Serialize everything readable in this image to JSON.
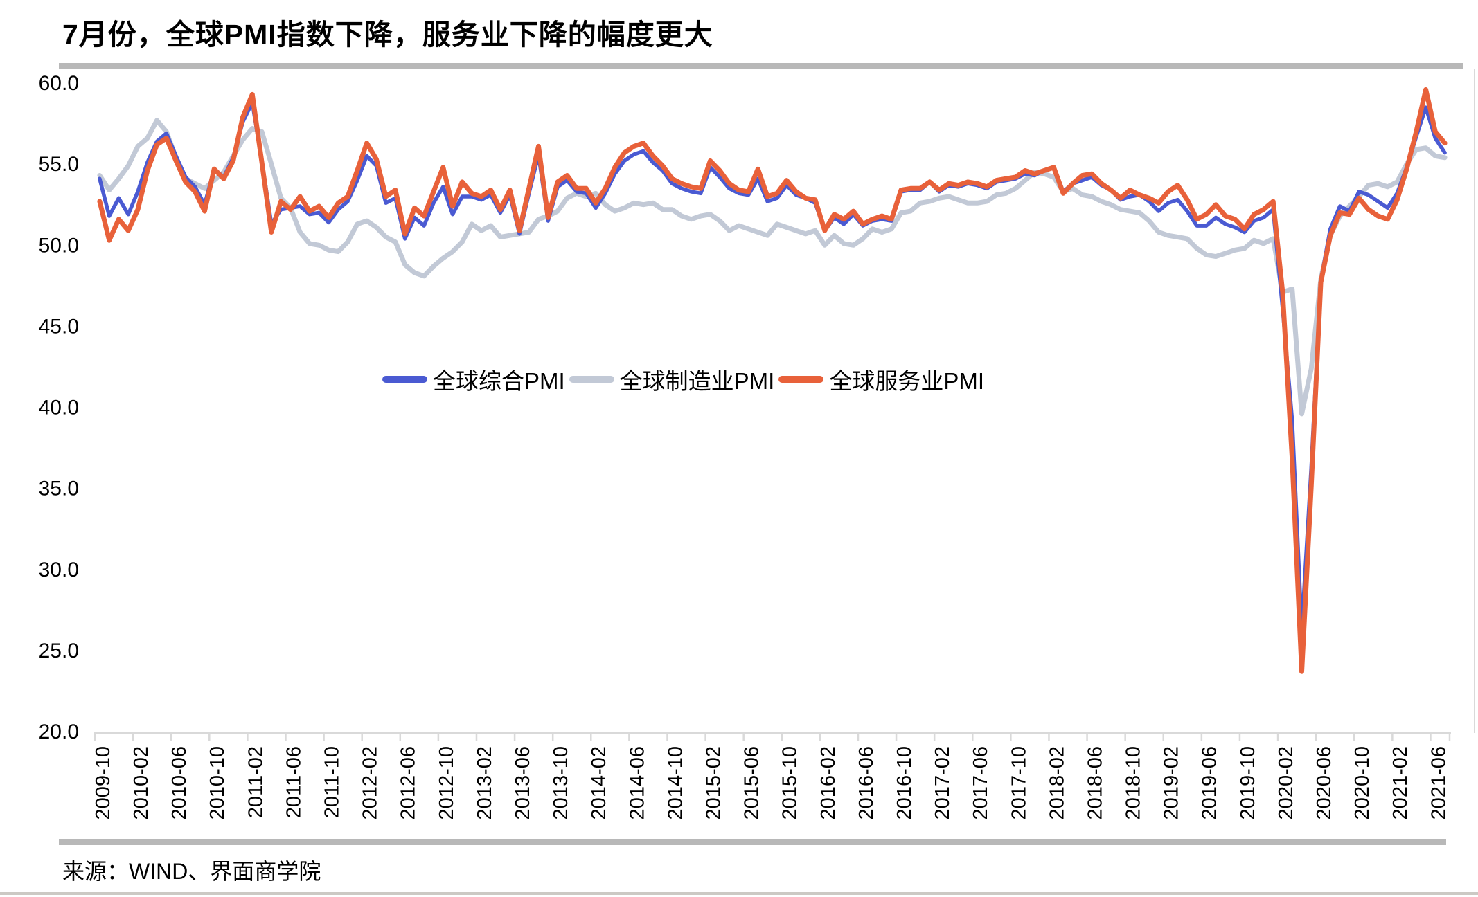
{
  "header": {
    "title": "7月份，全球PMI指数下降，服务业下降的幅度更大"
  },
  "footer": {
    "source": "来源：WIND、界面商学院"
  },
  "colors": {
    "composite_blue": "#4a5ad2",
    "manufacturing_gray": "#c2c9d6",
    "services_orange": "#e8613a",
    "rule_gray": "#b8b8b8",
    "axis_gray": "#d9d9d9",
    "text_black": "#000000"
  },
  "chart_data": {
    "type": "line",
    "title": "7月份，全球PMI指数下降，服务业下降的幅度更大",
    "xlabel": "",
    "ylabel": "",
    "ylim": [
      20.0,
      60.0
    ],
    "y_tick_labels": [
      "60.0",
      "55.0",
      "50.0",
      "45.0",
      "40.0",
      "35.0",
      "30.0",
      "25.0",
      "20.0"
    ],
    "grid": "off",
    "legend_position": "center-inside",
    "x_start": "2009-10",
    "x_end": "2021-07",
    "x_tick_interval_months": 4,
    "x_tick_labels": [
      "2009-10",
      "2010-02",
      "2010-06",
      "2010-10",
      "2011-02",
      "2011-06",
      "2011-10",
      "2012-02",
      "2012-06",
      "2012-10",
      "2013-02",
      "2013-06",
      "2013-10",
      "2014-02",
      "2014-06",
      "2014-10",
      "2015-02",
      "2015-06",
      "2015-10",
      "2016-02",
      "2016-06",
      "2016-10",
      "2017-02",
      "2017-06",
      "2017-10",
      "2018-02",
      "2018-06",
      "2018-10",
      "2019-02",
      "2019-06",
      "2019-10",
      "2020-02",
      "2020-06",
      "2020-10",
      "2021-02",
      "2021-06"
    ],
    "series": [
      {
        "name": "全球综合PMI",
        "color": "#4a5ad2",
        "values": [
          54.1,
          51.8,
          52.9,
          51.9,
          53.3,
          55.1,
          56.4,
          56.9,
          55.5,
          54.2,
          53.6,
          52.5,
          54.7,
          54.2,
          55.4,
          57.6,
          58.8,
          55.2,
          51.3,
          52.2,
          52.3,
          52.4,
          51.9,
          52.0,
          51.4,
          52.2,
          52.7,
          54.0,
          55.5,
          54.9,
          52.6,
          52.9,
          50.4,
          51.7,
          51.2,
          52.6,
          53.6,
          51.9,
          53.0,
          53.0,
          52.8,
          53.1,
          52.0,
          53.1,
          50.7,
          53.2,
          55.6,
          51.5,
          53.6,
          54.0,
          53.3,
          53.2,
          52.3,
          53.2,
          54.4,
          55.2,
          55.6,
          55.8,
          55.1,
          54.6,
          53.8,
          53.5,
          53.3,
          53.2,
          54.8,
          54.2,
          53.5,
          53.2,
          53.1,
          54.1,
          52.7,
          52.9,
          53.7,
          53.1,
          52.9,
          52.6,
          50.9,
          51.7,
          51.3,
          51.9,
          51.2,
          51.5,
          51.6,
          51.5,
          53.3,
          53.4,
          53.4,
          53.9,
          53.3,
          53.7,
          53.6,
          53.8,
          53.7,
          53.5,
          53.9,
          54.0,
          54.1,
          54.4,
          54.3,
          54.6,
          54.8,
          53.3,
          53.8,
          54.0,
          54.2,
          53.7,
          53.4,
          52.8,
          53.0,
          53.1,
          52.7,
          52.1,
          52.6,
          52.8,
          52.1,
          51.2,
          51.2,
          51.7,
          51.3,
          51.1,
          50.8,
          51.5,
          51.7,
          52.2,
          46.1,
          39.2,
          26.2,
          36.3,
          47.8,
          51.0,
          52.4,
          52.1,
          53.3,
          53.1,
          52.7,
          52.3,
          53.2,
          54.8,
          56.7,
          58.5,
          56.6,
          55.7
        ]
      },
      {
        "name": "全球制造业PMI",
        "color": "#c2c9d6",
        "values": [
          54.3,
          53.4,
          54.1,
          54.9,
          56.1,
          56.6,
          57.7,
          57.0,
          55.4,
          54.1,
          53.8,
          53.5,
          54.0,
          54.5,
          55.5,
          56.5,
          57.2,
          57.0,
          55.0,
          52.9,
          52.3,
          50.8,
          50.1,
          50.0,
          49.7,
          49.6,
          50.2,
          51.3,
          51.5,
          51.1,
          50.5,
          50.2,
          48.8,
          48.3,
          48.1,
          48.7,
          49.2,
          49.6,
          50.2,
          51.3,
          50.9,
          51.2,
          50.5,
          50.6,
          50.7,
          50.8,
          51.6,
          51.8,
          52.1,
          52.9,
          53.2,
          53.0,
          53.2,
          52.5,
          52.1,
          52.3,
          52.6,
          52.5,
          52.6,
          52.2,
          52.2,
          51.8,
          51.6,
          51.8,
          51.9,
          51.5,
          50.9,
          51.2,
          51.0,
          50.8,
          50.6,
          51.3,
          51.1,
          50.9,
          50.7,
          50.9,
          50.0,
          50.6,
          50.1,
          50.0,
          50.4,
          51.0,
          50.8,
          51.0,
          52.0,
          52.1,
          52.6,
          52.7,
          52.9,
          53.0,
          52.8,
          52.6,
          52.6,
          52.7,
          53.1,
          53.2,
          53.5,
          54.0,
          54.5,
          54.4,
          54.2,
          53.3,
          53.5,
          53.1,
          53.0,
          52.7,
          52.5,
          52.2,
          52.1,
          52.0,
          51.5,
          50.8,
          50.6,
          50.5,
          50.4,
          49.8,
          49.4,
          49.3,
          49.5,
          49.7,
          49.8,
          50.3,
          50.1,
          50.4,
          47.1,
          47.3,
          39.6,
          42.4,
          47.9,
          50.6,
          51.8,
          52.4,
          53.0,
          53.7,
          53.8,
          53.6,
          53.9,
          55.0,
          55.9,
          56.0,
          55.5,
          55.4
        ]
      },
      {
        "name": "全球服务业PMI",
        "color": "#e8613a",
        "values": [
          52.7,
          50.3,
          51.6,
          50.9,
          52.2,
          54.6,
          56.2,
          56.6,
          55.2,
          53.9,
          53.3,
          52.1,
          54.7,
          54.1,
          55.2,
          57.9,
          59.3,
          55.1,
          50.8,
          52.7,
          52.2,
          53.0,
          52.1,
          52.4,
          51.7,
          52.6,
          53.0,
          54.6,
          56.3,
          55.3,
          53.0,
          53.4,
          50.7,
          52.3,
          51.8,
          53.3,
          54.8,
          52.4,
          53.9,
          53.2,
          53.0,
          53.4,
          52.2,
          53.4,
          50.9,
          53.5,
          56.1,
          51.7,
          53.9,
          54.3,
          53.5,
          53.5,
          52.6,
          53.5,
          54.8,
          55.7,
          56.1,
          56.3,
          55.5,
          54.9,
          54.1,
          53.8,
          53.6,
          53.5,
          55.2,
          54.6,
          53.8,
          53.4,
          53.3,
          54.7,
          53.0,
          53.2,
          54.0,
          53.3,
          52.9,
          52.8,
          50.9,
          51.9,
          51.6,
          52.1,
          51.3,
          51.6,
          51.8,
          51.6,
          53.4,
          53.5,
          53.5,
          53.9,
          53.4,
          53.8,
          53.7,
          53.9,
          53.8,
          53.6,
          54.0,
          54.1,
          54.2,
          54.6,
          54.4,
          54.6,
          54.8,
          53.2,
          53.8,
          54.3,
          54.4,
          53.8,
          53.4,
          52.9,
          53.4,
          53.1,
          52.9,
          52.6,
          53.3,
          53.7,
          52.8,
          51.6,
          51.9,
          52.5,
          51.8,
          51.6,
          51.0,
          51.9,
          52.2,
          52.7,
          47.1,
          36.8,
          23.7,
          35.2,
          47.7,
          50.6,
          52.0,
          51.9,
          52.9,
          52.2,
          51.8,
          51.6,
          52.8,
          54.7,
          57.0,
          59.6,
          57.0,
          56.3
        ]
      }
    ]
  }
}
